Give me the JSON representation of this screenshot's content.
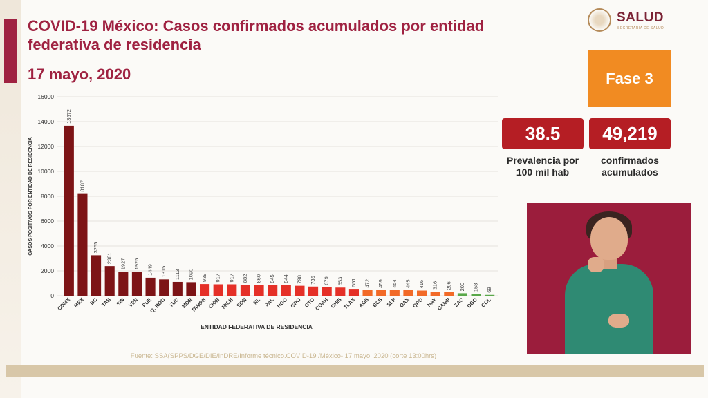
{
  "header": {
    "title": "COVID-19 México: Casos confirmados acumulados por entidad federativa de residencia",
    "date": "17 mayo, 2020",
    "logo_text": "SALUD",
    "logo_sub": "SECRETARÍA DE SALUD"
  },
  "fase": {
    "label": "Fase 3",
    "color": "#f18b22"
  },
  "stats": [
    {
      "value": "38.5",
      "label_line1": "Prevalencia por",
      "label_line2": "100 mil hab"
    },
    {
      "value": "49,219",
      "label_line1": "confirmados",
      "label_line2": "acumulados"
    }
  ],
  "source": "Fuente: SSA(SPPS/DGE/DIE/InDRE/Informe técnico.COVID-19 /México- 17 mayo, 2020 (corte 13:00hrs)",
  "colors": {
    "accent": "#9f2241",
    "dark_red": "#7d1416",
    "red": "#e53027",
    "orange": "#f26a27",
    "green": "#5aa84a"
  },
  "chart_data": {
    "type": "bar",
    "xlabel": "ENTIDAD FEDERATIVA DE RESIDENCIA",
    "ylabel": "CASOS POSITIVOS POR ENTIDAD DE RESIDENCIA",
    "ylim": [
      0,
      16000
    ],
    "yticks": [
      0,
      2000,
      4000,
      6000,
      8000,
      10000,
      12000,
      14000,
      16000
    ],
    "grid": true,
    "categories": [
      "CDMX",
      "MEX",
      "BC",
      "TAB",
      "SIN",
      "VER",
      "PUE",
      "Q. ROO",
      "YUC",
      "MOR",
      "TAMPS",
      "CHIH",
      "MICH",
      "SON",
      "NL",
      "JAL",
      "HGO",
      "GRO",
      "GTO",
      "COAH",
      "CHIS",
      "TLAX",
      "AGS",
      "BCS",
      "SLP",
      "OAX",
      "QRO",
      "NAY",
      "CAMP",
      "ZAC",
      "DGO",
      "COL"
    ],
    "values": [
      13672,
      8187,
      3255,
      2381,
      1927,
      1925,
      1449,
      1315,
      1113,
      1090,
      939,
      917,
      917,
      882,
      860,
      845,
      844,
      798,
      735,
      679,
      653,
      551,
      472,
      459,
      454,
      445,
      416,
      316,
      296,
      200,
      158,
      69
    ],
    "bar_colors": [
      "#7d1416",
      "#7d1416",
      "#7d1416",
      "#7d1416",
      "#7d1416",
      "#7d1416",
      "#7d1416",
      "#7d1416",
      "#7d1416",
      "#7d1416",
      "#e53027",
      "#e53027",
      "#e53027",
      "#e53027",
      "#e53027",
      "#e53027",
      "#e53027",
      "#e53027",
      "#e53027",
      "#e53027",
      "#e53027",
      "#e53027",
      "#f26a27",
      "#f26a27",
      "#f26a27",
      "#f26a27",
      "#f26a27",
      "#f26a27",
      "#f26a27",
      "#5aa84a",
      "#5aa84a",
      "#5aa84a"
    ]
  }
}
